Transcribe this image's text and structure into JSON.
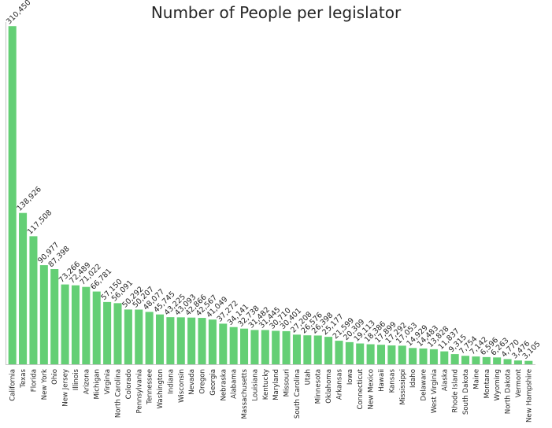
{
  "chart_data": {
    "type": "bar",
    "title": "Number of People per legislator",
    "xlabel": "",
    "ylabel": "",
    "ylim": [
      0,
      320000
    ],
    "grid": false,
    "bar_color": "#64cf75",
    "categories": [
      "California",
      "Texas",
      "Florida",
      "New York",
      "Ohio",
      "New Jersey",
      "Illinois",
      "Arizona",
      "Michigan",
      "Virginia",
      "North Carolina",
      "Colorado",
      "Pennsylvania",
      "Tennessee",
      "Washington",
      "Indiana",
      "Wisconsin",
      "Nevada",
      "Oregon",
      "Georgia",
      "Nebraska",
      "Alabama",
      "Massachusetts",
      "Louisiana",
      "Kentucky",
      "Maryland",
      "Missouri",
      "South Carolina",
      "Utah",
      "Minnesota",
      "Oklahoma",
      "Arkansas",
      "Iowa",
      "Connecticut",
      "New Mexico",
      "Hawaii",
      "Kansas",
      "Mississippi",
      "Idaho",
      "Delaware",
      "West Virginia",
      "Alaska",
      "Rhode Island",
      "South Dakota",
      "Maine",
      "Montana",
      "Wyoming",
      "North Dakota",
      "Vermont",
      "New Hampshire"
    ],
    "values": [
      310450,
      138926,
      117508,
      90977,
      87398,
      73266,
      72489,
      71022,
      66781,
      57150,
      56091,
      50292,
      50207,
      48077,
      45745,
      43225,
      43093,
      42866,
      42567,
      41049,
      37272,
      34141,
      32738,
      31482,
      31445,
      30710,
      30401,
      27208,
      26576,
      26398,
      25177,
      21599,
      20309,
      19113,
      18386,
      17899,
      17292,
      17053,
      14929,
      14483,
      13828,
      11837,
      9315,
      7754,
      7142,
      6596,
      6263,
      4770,
      3476,
      3105
    ],
    "value_labels": [
      "310,450",
      "138,926",
      "117,508",
      "90,977",
      "87,398",
      "73,266",
      "72,489",
      "71,022",
      "66,781",
      "57,150",
      "56,091",
      "50,292",
      "50,207",
      "48,077",
      "45,745",
      "43,225",
      "43,093",
      "42,866",
      "42,567",
      "41,049",
      "37,272",
      "34,141",
      "32,738",
      "31,482",
      "31,445",
      "30,710",
      "30,401",
      "27,208",
      "26,576",
      "26,398",
      "25,177",
      "21,599",
      "20,309",
      "19,113",
      "18,386",
      "17,899",
      "17,292",
      "17,053",
      "14,929",
      "14,483",
      "13,828",
      "11,837",
      "9,315",
      "7,754",
      "7,142",
      "6,596",
      "6,263",
      "4,770",
      "3,476",
      "3,105"
    ]
  }
}
